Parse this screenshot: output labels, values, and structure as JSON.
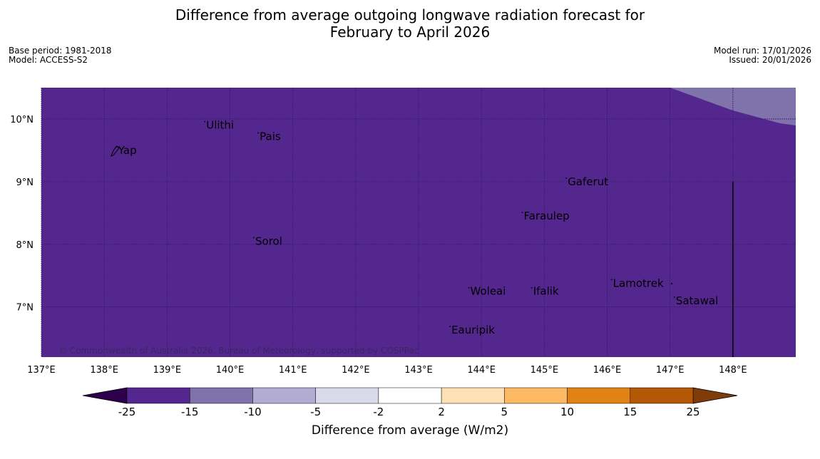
{
  "title": {
    "line1": "Difference from average outgoing longwave radiation forecast for",
    "line2": "February to April 2026"
  },
  "meta_left": {
    "base_period": "Base period: 1981-2018",
    "model": "Model: ACCESS-S2"
  },
  "meta_right": {
    "model_run": "Model run: 17/01/2026",
    "issued": "Issued: 20/01/2026"
  },
  "map": {
    "lon_range": [
      137,
      149
    ],
    "lat_range": [
      6.2,
      10.5
    ],
    "fill_color": "#54278f",
    "anomaly_zone_color": "#8073ac",
    "copyright": "© Commonwealth of Australia 2026, Bureau of Meteorology, supported by COSPPac",
    "lon_ticks": [
      {
        "value": 137,
        "label": "137°E"
      },
      {
        "value": 138,
        "label": "138°E"
      },
      {
        "value": 139,
        "label": "139°E"
      },
      {
        "value": 140,
        "label": "140°E"
      },
      {
        "value": 141,
        "label": "141°E"
      },
      {
        "value": 142,
        "label": "142°E"
      },
      {
        "value": 143,
        "label": "143°E"
      },
      {
        "value": 144,
        "label": "144°E"
      },
      {
        "value": 145,
        "label": "145°E"
      },
      {
        "value": 146,
        "label": "146°E"
      },
      {
        "value": 147,
        "label": "147°E"
      },
      {
        "value": 148,
        "label": "148°E"
      }
    ],
    "lat_ticks": [
      {
        "value": 10,
        "label": "10°N"
      },
      {
        "value": 9,
        "label": "9°N"
      },
      {
        "value": 8,
        "label": "8°N"
      },
      {
        "value": 7,
        "label": "7°N"
      }
    ],
    "places": [
      {
        "name": "Yap",
        "lon": 138.2,
        "lat": 9.5
      },
      {
        "name": "Ulithi",
        "lon": 139.6,
        "lat": 9.9
      },
      {
        "name": "Pais",
        "lon": 140.45,
        "lat": 9.72
      },
      {
        "name": "Gaferut",
        "lon": 145.35,
        "lat": 9.0
      },
      {
        "name": "Faraulep",
        "lon": 144.65,
        "lat": 8.45
      },
      {
        "name": "Sorol",
        "lon": 140.38,
        "lat": 8.05
      },
      {
        "name": "Lamotrek",
        "lon": 146.07,
        "lat": 7.38
      },
      {
        "name": "Woleai",
        "lon": 143.8,
        "lat": 7.25
      },
      {
        "name": "Ifalik",
        "lon": 144.8,
        "lat": 7.25
      },
      {
        "name": "Satawal",
        "lon": 147.07,
        "lat": 7.1
      },
      {
        "name": "Eauripik",
        "lon": 143.5,
        "lat": 6.63
      }
    ]
  },
  "colorbar": {
    "label": "Difference from average (W/m2)",
    "below_color": "#2d004b",
    "above_color": "#7f3b08",
    "bins": [
      {
        "color": "#54278f",
        "from": "-25",
        "to": "-15"
      },
      {
        "color": "#8073ac",
        "from": "-15",
        "to": "-10"
      },
      {
        "color": "#b2abd2",
        "from": "-10",
        "to": "-5"
      },
      {
        "color": "#d8daeb",
        "from": "-5",
        "to": "-2"
      },
      {
        "color": "#ffffff",
        "from": "-2",
        "to": "2"
      },
      {
        "color": "#fee0b6",
        "from": "2",
        "to": "5"
      },
      {
        "color": "#fdb863",
        "from": "5",
        "to": "10"
      },
      {
        "color": "#e08214",
        "from": "10",
        "to": "15"
      },
      {
        "color": "#b35806",
        "from": "15",
        "to": "25"
      }
    ],
    "tick_labels": [
      "-25",
      "-15",
      "-10",
      "-5",
      "-2",
      "2",
      "5",
      "10",
      "15",
      "25"
    ]
  }
}
